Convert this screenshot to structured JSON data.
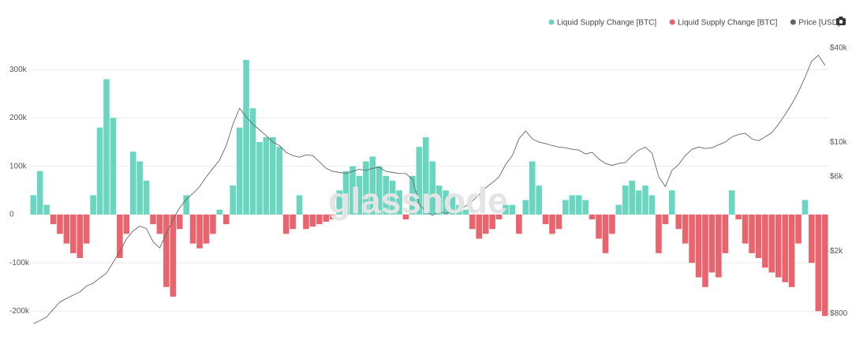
{
  "chart_data": {
    "type": "bar",
    "watermark": "glassnode",
    "legend": "top-right",
    "grid": true,
    "y2log": true,
    "ylim": [
      -250000,
      395000
    ],
    "yticks": [
      {
        "value": -200000,
        "label": "-200k"
      },
      {
        "value": -100000,
        "label": "-100k"
      },
      0,
      {
        "value": 100000,
        "label": "100k"
      },
      {
        "value": 200000,
        "label": "200k"
      },
      {
        "value": 300000,
        "label": "300k"
      }
    ],
    "y2lim": [
      580,
      57300
    ],
    "y2ticks": [
      {
        "value": 800,
        "label": "$800"
      },
      {
        "value": 2000,
        "label": "$2k"
      },
      {
        "value": 6000,
        "label": "$6k"
      },
      {
        "value": 10000,
        "label": "$10k"
      },
      {
        "value": 40000,
        "label": "$40k"
      }
    ],
    "series": [
      {
        "name": "Liquid Supply Change [BTC]",
        "color": "#6ad6bf",
        "values": [
          40000,
          90000,
          20000,
          null,
          null,
          null,
          null,
          null,
          null,
          40000,
          180000,
          280000,
          200000,
          null,
          null,
          130000,
          110000,
          70000,
          null,
          null,
          null,
          null,
          null,
          40000,
          null,
          null,
          null,
          null,
          10000,
          null,
          60000,
          180000,
          320000,
          220000,
          150000,
          160000,
          160000,
          140000,
          null,
          null,
          40000,
          null,
          null,
          null,
          null,
          null,
          50000,
          90000,
          100000,
          80000,
          110000,
          120000,
          100000,
          80000,
          70000,
          50000,
          null,
          80000,
          140000,
          160000,
          110000,
          60000,
          50000,
          40000,
          20000,
          10000,
          null,
          null,
          null,
          null,
          null,
          20000,
          20000,
          null,
          30000,
          110000,
          60000,
          null,
          null,
          null,
          30000,
          40000,
          40000,
          30000,
          null,
          null,
          null,
          null,
          20000,
          60000,
          70000,
          50000,
          60000,
          40000,
          null,
          null,
          50000,
          null,
          null,
          null,
          null,
          null,
          null,
          null,
          null,
          50000,
          null,
          null,
          null,
          null,
          null,
          null,
          null,
          null,
          null,
          null,
          30000,
          null,
          null,
          null
        ]
      },
      {
        "name": "Liquid Supply Change [BTC]",
        "color": "#e9646d",
        "values": [
          null,
          null,
          null,
          -20000,
          -40000,
          -60000,
          -80000,
          -90000,
          -60000,
          null,
          null,
          null,
          null,
          -90000,
          -40000,
          null,
          null,
          null,
          -20000,
          -40000,
          -150000,
          -170000,
          -30000,
          null,
          -60000,
          -70000,
          -60000,
          -40000,
          null,
          -20000,
          null,
          null,
          null,
          null,
          null,
          null,
          null,
          null,
          -40000,
          -30000,
          null,
          -30000,
          -25000,
          -20000,
          -15000,
          -10000,
          null,
          null,
          null,
          null,
          null,
          null,
          null,
          null,
          null,
          null,
          -10000,
          null,
          null,
          null,
          null,
          null,
          null,
          null,
          null,
          null,
          -30000,
          -50000,
          -40000,
          -30000,
          -10000,
          null,
          null,
          -40000,
          null,
          null,
          null,
          -20000,
          -40000,
          -30000,
          null,
          null,
          null,
          null,
          -10000,
          -50000,
          -80000,
          -40000,
          null,
          null,
          null,
          null,
          null,
          null,
          -80000,
          -20000,
          null,
          -30000,
          -60000,
          -100000,
          -130000,
          -150000,
          -120000,
          -130000,
          -80000,
          null,
          -10000,
          -60000,
          -80000,
          -90000,
          -110000,
          -120000,
          -130000,
          -140000,
          -150000,
          -60000,
          null,
          -100000,
          -200000,
          -210000
        ]
      },
      {
        "name": "Price [USD]",
        "color": "#666666",
        "type": "line",
        "axis": "y2",
        "values": [
          690,
          720,
          760,
          850,
          950,
          1000,
          1050,
          1100,
          1200,
          1250,
          1350,
          1450,
          1700,
          2000,
          2400,
          2700,
          2900,
          2800,
          2300,
          2100,
          2600,
          3200,
          3800,
          4300,
          4700,
          5200,
          6000,
          6800,
          7700,
          9500,
          13000,
          16500,
          14500,
          13000,
          12000,
          11000,
          10000,
          9500,
          8600,
          8200,
          8000,
          8300,
          8200,
          7500,
          6800,
          6500,
          6400,
          6300,
          6500,
          6700,
          6600,
          6800,
          6900,
          6500,
          6400,
          6300,
          6300,
          5800,
          4000,
          3600,
          3400,
          3600,
          3500,
          3600,
          3700,
          3900,
          4200,
          4600,
          5100,
          5500,
          6000,
          7200,
          8200,
          10500,
          11800,
          10500,
          10000,
          9800,
          9500,
          9300,
          9200,
          9000,
          8900,
          8400,
          8600,
          7800,
          7300,
          7100,
          7300,
          7400,
          8200,
          8900,
          9300,
          8500,
          6000,
          5200,
          6600,
          7200,
          8200,
          9000,
          9300,
          9100,
          9200,
          9600,
          10000,
          10800,
          11200,
          11400,
          10500,
          10200,
          10800,
          11500,
          13000,
          15000,
          17500,
          21000,
          26000,
          33000,
          36000,
          31000
        ]
      }
    ]
  }
}
